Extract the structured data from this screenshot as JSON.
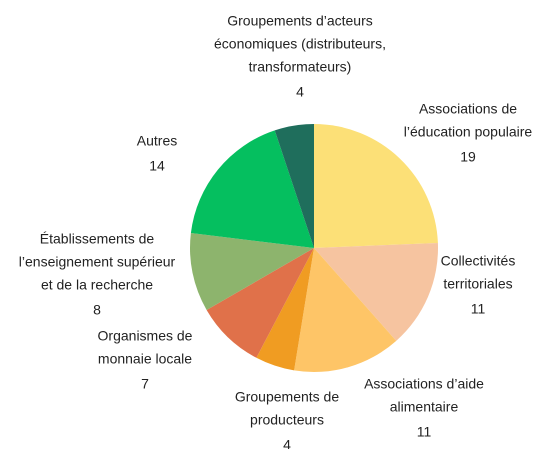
{
  "chart_data": {
    "type": "pie",
    "categories": [
      [
        "Associations de",
        "l’éducation populaire"
      ],
      [
        "Collectivités",
        "territoriales"
      ],
      [
        "Associations d’aide",
        "alimentaire"
      ],
      [
        "Groupements de",
        "producteurs"
      ],
      [
        "Organismes de",
        "monnaie locale"
      ],
      [
        "Établissements de",
        "l’enseignement supérieur",
        "et de la recherche"
      ],
      [
        "Autres"
      ],
      [
        "Groupements d’acteurs",
        "économiques (distributeurs,",
        "transformateurs)"
      ]
    ],
    "values": [
      19,
      11,
      11,
      4,
      7,
      8,
      14,
      4
    ],
    "colors": [
      "#fce077",
      "#f6c4a0",
      "#fec567",
      "#f09c22",
      "#e0714a",
      "#8db46d",
      "#05bf5f",
      "#1f6e5c"
    ]
  }
}
